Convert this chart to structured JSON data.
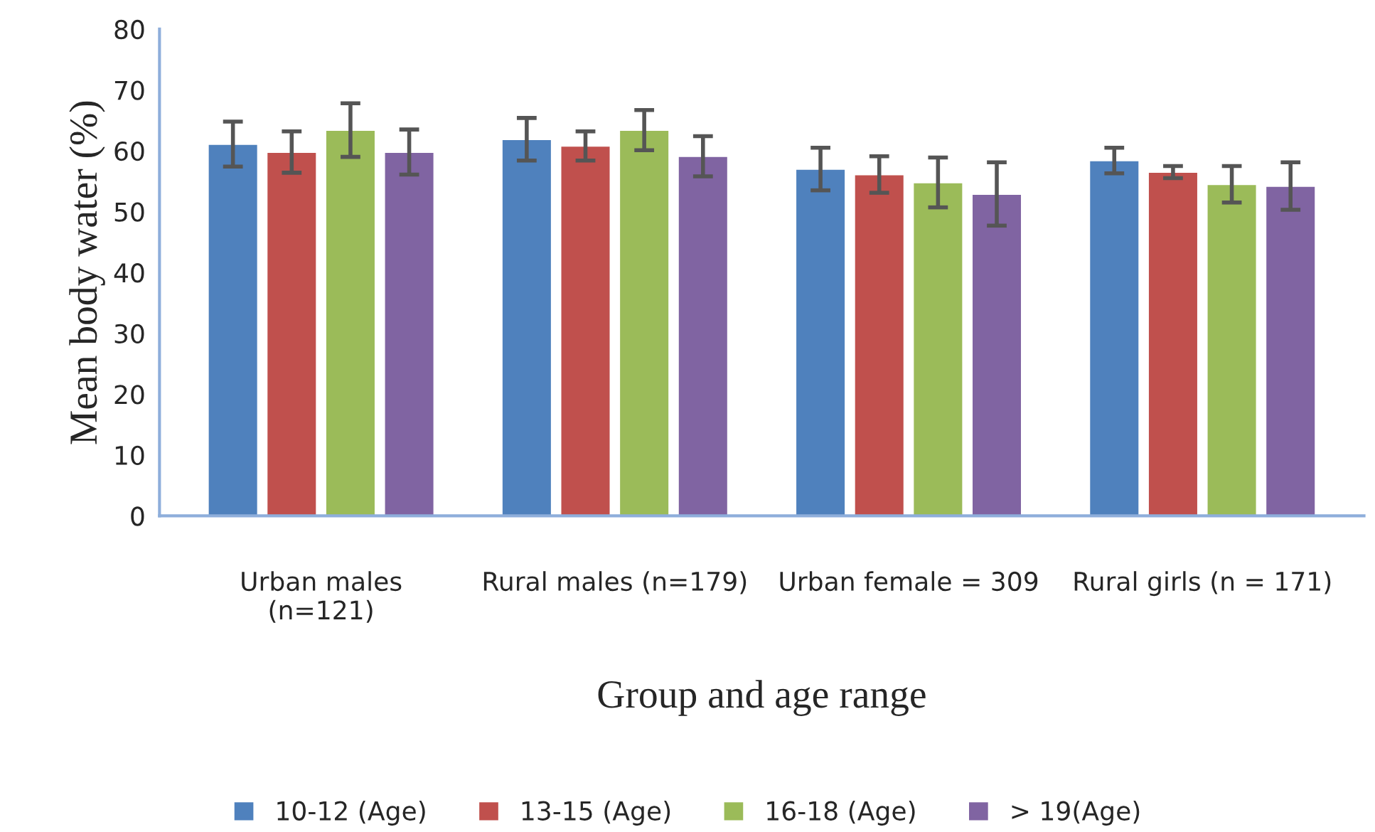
{
  "chart_data": {
    "type": "bar",
    "xlabel": "Group and age range",
    "ylabel": "Mean body water (%)",
    "categories": [
      "Urban males\n(n=121)",
      "Rural males (n=179)",
      "Urban female = 309",
      "Rural girls (n = 171)"
    ],
    "series": [
      {
        "name": "10-12 (Age)",
        "color": "#4f81bd",
        "values": [
          61.1,
          61.9,
          57.0,
          58.4
        ],
        "errors": [
          3.7,
          3.5,
          3.5,
          2.1
        ]
      },
      {
        "name": "13-15 (Age)",
        "color": "#c0504d",
        "values": [
          59.8,
          60.8,
          56.1,
          56.5
        ],
        "errors": [
          3.4,
          2.4,
          3.0,
          1.0
        ]
      },
      {
        "name": "16-18 (Age)",
        "color": "#9bbb59",
        "values": [
          63.4,
          63.4,
          54.8,
          54.5
        ],
        "errors": [
          4.4,
          3.3,
          4.1,
          3.0
        ]
      },
      {
        "name": "> 19(Age)",
        "color": "#8064a2",
        "values": [
          59.8,
          59.1,
          52.9,
          54.2
        ],
        "errors": [
          3.7,
          3.3,
          5.2,
          3.9
        ]
      }
    ],
    "ylim": [
      0,
      80
    ],
    "yticks": [
      0,
      10,
      20,
      30,
      40,
      50,
      60,
      70,
      80
    ],
    "grid": false,
    "legend": "bottom"
  }
}
